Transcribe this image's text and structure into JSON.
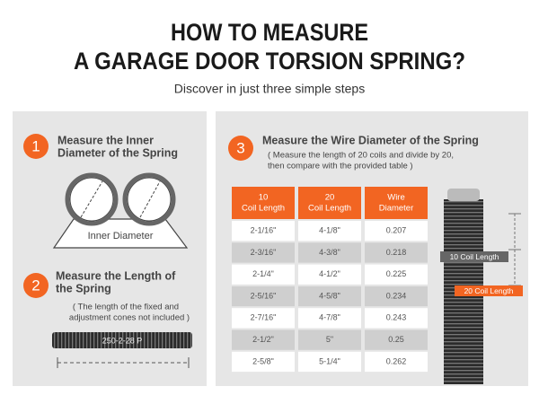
{
  "header": {
    "title_lines": [
      "HOW TO MEASURE",
      "A GARAGE DOOR TORSION SPRING?"
    ],
    "subtitle": "Discover in just three simple steps"
  },
  "steps": [
    {
      "number": "1",
      "title_lines": [
        "Measure the Inner",
        "Diameter of the Spring"
      ],
      "diagram_label": "Inner Diameter"
    },
    {
      "number": "2",
      "title_lines": [
        "Measure the Length of",
        "the Spring"
      ],
      "note_lines": [
        "( The length of the fixed and",
        "adjustment cones not included )"
      ],
      "spring_label": "250-2-28 P"
    },
    {
      "number": "3",
      "title_lines": [
        "Measure the Wire Diameter of the Spring"
      ],
      "note_lines": [
        "( Measure the length of 20 coils and divide by 20,",
        "then compare with the provided table )"
      ]
    }
  ],
  "table": {
    "columns": [
      [
        "10",
        "Coil Length"
      ],
      [
        "20",
        "Coil Length"
      ],
      [
        "Wire",
        "Diameter"
      ]
    ],
    "rows": [
      [
        "2-1/16\"",
        "4-1/8\"",
        "0.207"
      ],
      [
        "2-3/16\"",
        "4-3/8\"",
        "0.218"
      ],
      [
        "2-1/4\"",
        "4-1/2\"",
        "0.225"
      ],
      [
        "2-5/16\"",
        "4-5/8\"",
        "0.234"
      ],
      [
        "2-7/16\"",
        "4-7/8\"",
        "0.243"
      ],
      [
        "2-1/2\"",
        "5\"",
        "0.25"
      ],
      [
        "2-5/8\"",
        "5-1/4\"",
        "0.262"
      ]
    ]
  },
  "spring_labels": [
    "10 Coil Length",
    "20 Coil Length"
  ]
}
